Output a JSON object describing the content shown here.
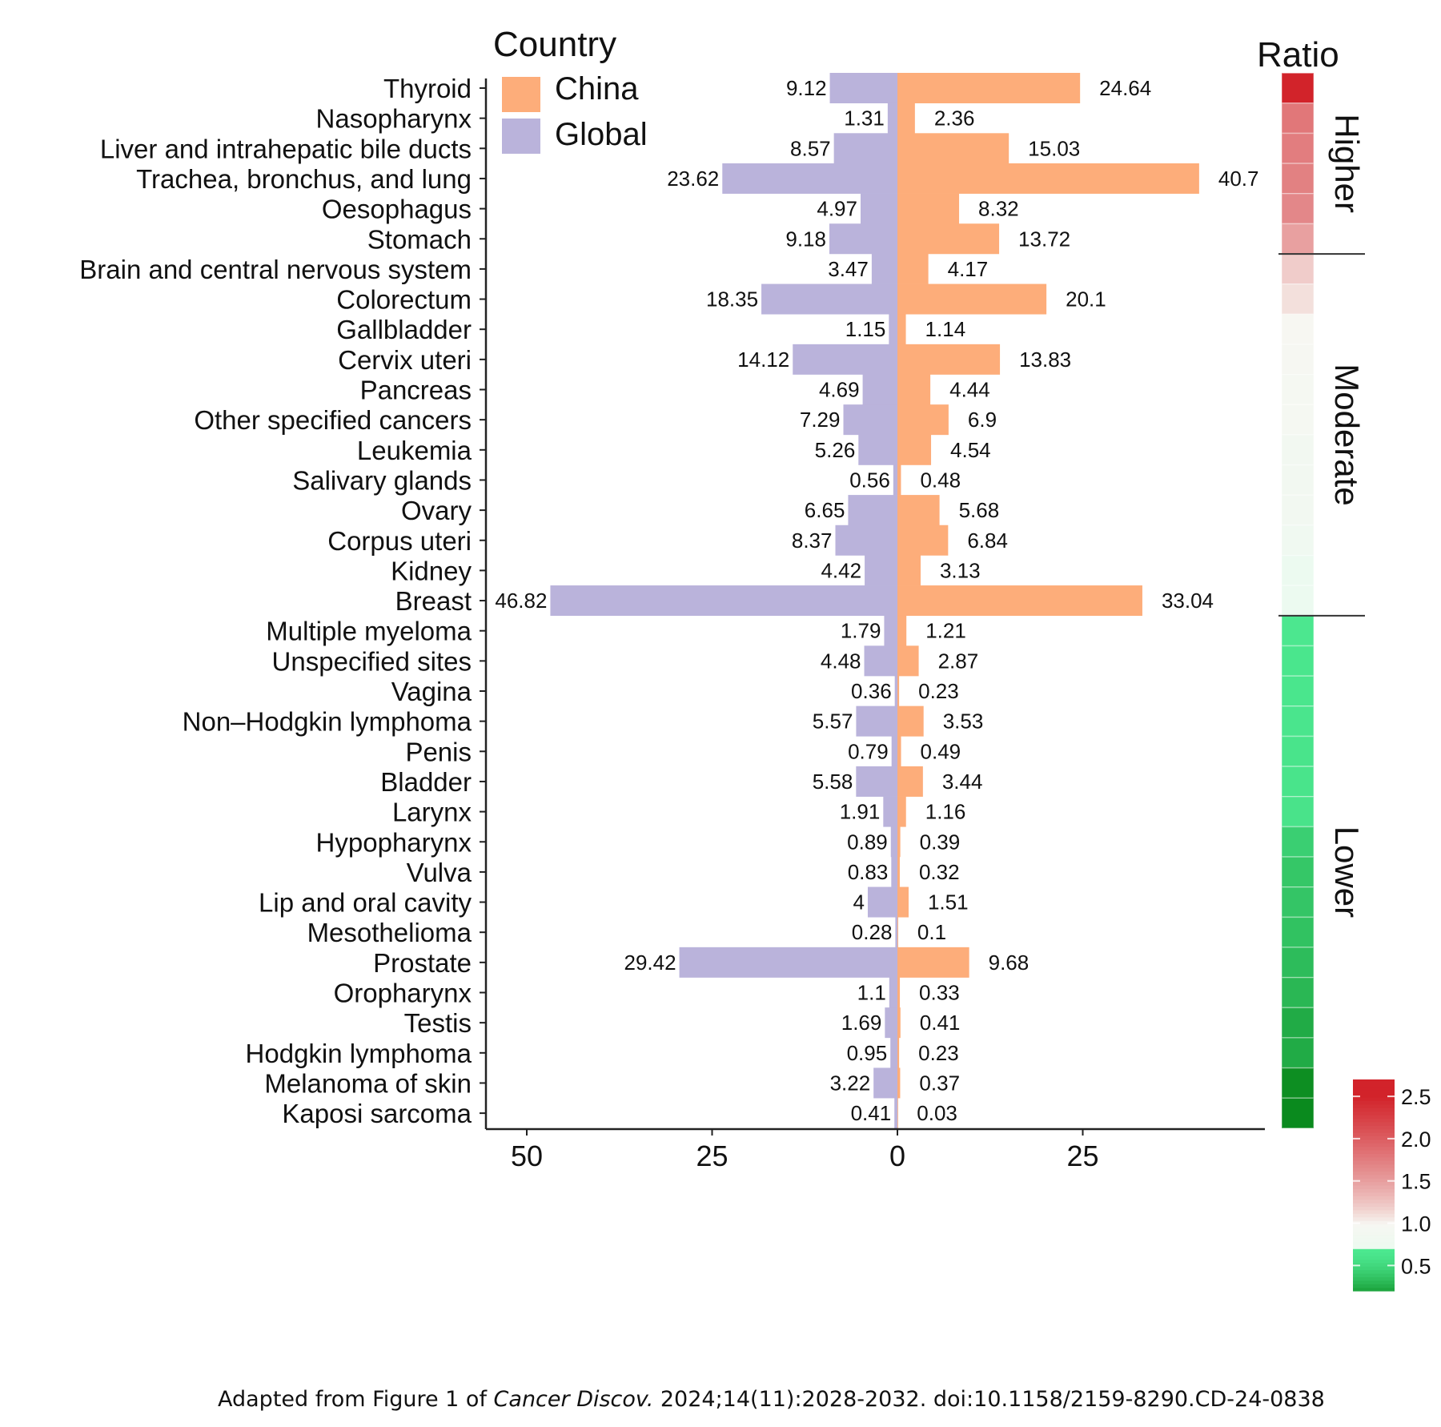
{
  "chart_data": {
    "type": "bar",
    "orientation": "horizontal",
    "layout": "diverging",
    "legend": {
      "title": "Country",
      "entries": [
        {
          "name": "China",
          "color": "#FDAD7A"
        },
        {
          "name": "Global",
          "color": "#BAB3DB"
        }
      ],
      "placement": "top-left"
    },
    "categories": [
      "Thyroid",
      "Nasopharynx",
      "Liver and intrahepatic bile ducts",
      "Trachea, bronchus, and lung",
      "Oesophagus",
      "Stomach",
      "Brain and central nervous system",
      "Colorectum",
      "Gallbladder",
      "Cervix uteri",
      "Pancreas",
      "Other specified cancers",
      "Leukemia",
      "Salivary glands",
      "Ovary",
      "Corpus uteri",
      "Kidney",
      "Breast",
      "Multiple myeloma",
      "Unspecified sites",
      "Vagina",
      "Non–Hodgkin lymphoma",
      "Penis",
      "Bladder",
      "Larynx",
      "Hypopharynx",
      "Vulva",
      "Lip and oral cavity",
      "Mesothelioma",
      "Prostate",
      "Oropharynx",
      "Testis",
      "Hodgkin lymphoma",
      "Melanoma of skin",
      "Kaposi sarcoma"
    ],
    "series": [
      {
        "name": "Global",
        "direction": "left",
        "values": [
          9.12,
          1.31,
          8.57,
          23.62,
          4.97,
          9.18,
          3.47,
          18.35,
          1.15,
          14.12,
          4.69,
          7.29,
          5.26,
          0.56,
          6.65,
          8.37,
          4.42,
          46.82,
          1.79,
          4.48,
          0.36,
          5.57,
          0.79,
          5.58,
          1.91,
          0.89,
          0.83,
          4,
          0.28,
          29.42,
          1.1,
          1.69,
          0.95,
          3.22,
          0.41
        ],
        "labels": [
          "9.12",
          "1.31",
          "8.57",
          "23.62",
          "4.97",
          "9.18",
          "3.47",
          "18.35",
          "1.15",
          "14.12",
          "4.69",
          "7.29",
          "5.26",
          "0.56",
          "6.65",
          "8.37",
          "4.42",
          "46.82",
          "1.79",
          "4.48",
          "0.36",
          "5.57",
          "0.79",
          "5.58",
          "1.91",
          "0.89",
          "0.83",
          "4",
          "0.28",
          "29.42",
          "1.1",
          "1.69",
          "0.95",
          "3.22",
          "0.41"
        ]
      },
      {
        "name": "China",
        "direction": "right",
        "values": [
          24.64,
          2.36,
          15.03,
          40.7,
          8.32,
          13.72,
          4.17,
          20.1,
          1.14,
          13.83,
          4.44,
          6.9,
          4.54,
          0.48,
          5.68,
          6.84,
          3.13,
          33.04,
          1.21,
          2.87,
          0.23,
          3.53,
          0.49,
          3.44,
          1.16,
          0.39,
          0.32,
          1.51,
          0.1,
          9.68,
          0.33,
          0.41,
          0.23,
          0.37,
          0.03
        ],
        "labels": [
          "24.64",
          "2.36",
          "15.03",
          "40.7",
          "8.32",
          "13.72",
          "4.17",
          "20.1",
          "1.14",
          "13.83",
          "4.44",
          "6.9",
          "4.54",
          "0.48",
          "5.68",
          "6.84",
          "3.13",
          "33.04",
          "1.21",
          "2.87",
          "0.23",
          "3.53",
          "0.49",
          "3.44",
          "1.16",
          "0.39",
          "0.32",
          "1.51",
          "0.1",
          "9.68",
          "0.33",
          "0.41",
          "0.23",
          "0.37",
          "0.03"
        ]
      }
    ],
    "xaxis": {
      "ticks": [
        -50,
        -25,
        0,
        25
      ],
      "tick_labels": [
        "50",
        "25",
        "0",
        "25"
      ],
      "range": [
        -55,
        46
      ]
    },
    "ratio_panel": {
      "title": "Ratio",
      "groups": [
        {
          "label": "Higher",
          "start": 0,
          "end": 5
        },
        {
          "label": "Moderate",
          "start": 6,
          "end": 17
        },
        {
          "label": "Lower",
          "start": 18,
          "end": 34
        }
      ],
      "colorbar": {
        "ticks": [
          "2.5",
          "2.0",
          "1.5",
          "1.0",
          "0.5"
        ],
        "tick_values": [
          2.5,
          2.0,
          1.5,
          1.0,
          0.5
        ],
        "range": [
          0.2,
          2.7
        ],
        "high_color": "#D2232A",
        "mid_color": "#F7F7F2",
        "low_color": "#4CE890",
        "lowest_color": "#0A8A1E"
      }
    },
    "title": "",
    "xlabel": "",
    "ylabel": "",
    "grid": false
  },
  "caption": {
    "prefix": "Adapted from Figure 1 of ",
    "journal": "Cancer Discov.",
    "suffix": " 2024;14(11):2028-2032. doi:10.1158/2159-8290.CD-24-0838"
  }
}
